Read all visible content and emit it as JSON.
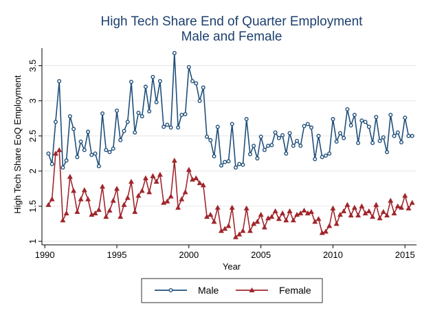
{
  "chart_data": {
    "type": "line",
    "title": "High Tech Share End of Quarter Employment",
    "subtitle": "Male and Female",
    "xlabel": "Year",
    "ylabel": "High Tech Share EoQ Employment",
    "xlim": [
      1989.8,
      2015.8
    ],
    "ylim": [
      0.95,
      3.75
    ],
    "xticks": [
      1990,
      1995,
      2000,
      2005,
      2010,
      2015
    ],
    "yticks": [
      1,
      1.5,
      2,
      2.5,
      3,
      3.5
    ],
    "xtick_labels": [
      "1990",
      "1995",
      "2000",
      "2005",
      "2010",
      "2015"
    ],
    "ytick_labels": [
      "1",
      "1.5",
      "2",
      "2.5",
      "3",
      "3.5"
    ],
    "grid": "horizontal",
    "legend_position": "bottom",
    "x_start": 1990.25,
    "x_step": 0.25,
    "series": [
      {
        "name": "Male",
        "color": "#1f4e79",
        "marker": "circle",
        "values": [
          2.25,
          2.1,
          2.7,
          3.28,
          2.05,
          2.15,
          2.78,
          2.6,
          2.2,
          2.42,
          2.3,
          2.56,
          2.23,
          2.25,
          2.07,
          2.82,
          2.3,
          2.27,
          2.32,
          2.86,
          2.44,
          2.57,
          2.7,
          3.27,
          2.55,
          2.83,
          2.78,
          3.2,
          2.85,
          3.34,
          2.98,
          3.28,
          2.63,
          2.66,
          2.62,
          3.68,
          2.62,
          2.8,
          2.81,
          3.48,
          3.28,
          3.25,
          3.0,
          3.19,
          2.49,
          2.44,
          2.21,
          2.63,
          2.08,
          2.13,
          2.14,
          2.67,
          2.05,
          2.1,
          2.09,
          2.74,
          2.24,
          2.36,
          2.18,
          2.49,
          2.3,
          2.36,
          2.37,
          2.55,
          2.47,
          2.51,
          2.25,
          2.54,
          2.36,
          2.43,
          2.36,
          2.64,
          2.67,
          2.62,
          2.17,
          2.5,
          2.2,
          2.22,
          2.25,
          2.74,
          2.42,
          2.54,
          2.47,
          2.88,
          2.65,
          2.8,
          2.4,
          2.72,
          2.7,
          2.63,
          2.4,
          2.77,
          2.43,
          2.48,
          2.27,
          2.8,
          2.5,
          2.55,
          2.41,
          2.76,
          2.5,
          2.5
        ]
      },
      {
        "name": "Female",
        "color": "#a0262c",
        "marker": "triangle",
        "values": [
          1.52,
          1.6,
          2.25,
          2.3,
          1.3,
          1.4,
          1.92,
          1.72,
          1.42,
          1.6,
          1.73,
          1.6,
          1.38,
          1.4,
          1.45,
          1.78,
          1.35,
          1.44,
          1.58,
          1.75,
          1.35,
          1.52,
          1.62,
          1.85,
          1.42,
          1.65,
          1.72,
          1.9,
          1.7,
          1.93,
          1.85,
          1.95,
          1.55,
          1.57,
          1.64,
          2.15,
          1.48,
          1.6,
          1.7,
          2.02,
          1.88,
          1.9,
          1.83,
          1.8,
          1.35,
          1.38,
          1.28,
          1.48,
          1.15,
          1.18,
          1.22,
          1.48,
          1.06,
          1.1,
          1.15,
          1.47,
          1.15,
          1.25,
          1.28,
          1.38,
          1.2,
          1.33,
          1.35,
          1.43,
          1.32,
          1.4,
          1.3,
          1.43,
          1.3,
          1.38,
          1.4,
          1.44,
          1.4,
          1.42,
          1.28,
          1.32,
          1.12,
          1.14,
          1.22,
          1.47,
          1.25,
          1.38,
          1.43,
          1.52,
          1.37,
          1.48,
          1.37,
          1.5,
          1.4,
          1.43,
          1.35,
          1.52,
          1.33,
          1.42,
          1.37,
          1.58,
          1.4,
          1.5,
          1.48,
          1.65,
          1.47,
          1.55
        ]
      }
    ]
  }
}
